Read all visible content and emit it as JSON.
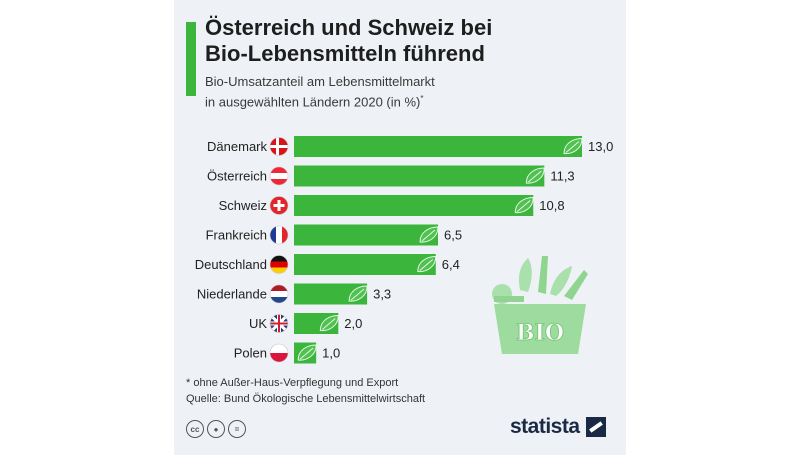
{
  "header": {
    "title_line1": "Österreich und Schweiz bei",
    "title_line2": "Bio-Lebensmitteln führend",
    "subtitle_line1": "Bio-Umsatzanteil am Lebensmittelmarkt",
    "subtitle_line2": "in ausgewählten Ländern 2020 (in %)",
    "subtitle_mark": "*"
  },
  "chart_data": {
    "type": "bar",
    "orientation": "horizontal",
    "categories": [
      "Dänemark",
      "Österreich",
      "Schweiz",
      "Frankreich",
      "Deutschland",
      "Niederlande",
      "UK",
      "Polen"
    ],
    "values": [
      13.0,
      11.3,
      10.8,
      6.5,
      6.4,
      3.3,
      2.0,
      1.0
    ],
    "value_labels": [
      "13,0",
      "11,3",
      "10,8",
      "6,5",
      "6,4",
      "3,3",
      "2,0",
      "1,0"
    ],
    "flags": [
      "denmark-flag",
      "austria-flag",
      "switzerland-flag",
      "france-flag",
      "germany-flag",
      "netherlands-flag",
      "uk-flag",
      "poland-flag"
    ],
    "bar_color": "#3bb53b",
    "xlim": [
      0,
      13.0
    ]
  },
  "decoration": {
    "bio_label": "BIO"
  },
  "footer": {
    "note": "* ohne Außer-Haus-Verpflegung und Export",
    "source": "Quelle: Bund Ökologische Lebensmittelwirtschaft",
    "brand": "statista",
    "license_icons": [
      "creative-commons-icon",
      "attribution-icon",
      "no-derivatives-icon"
    ]
  }
}
